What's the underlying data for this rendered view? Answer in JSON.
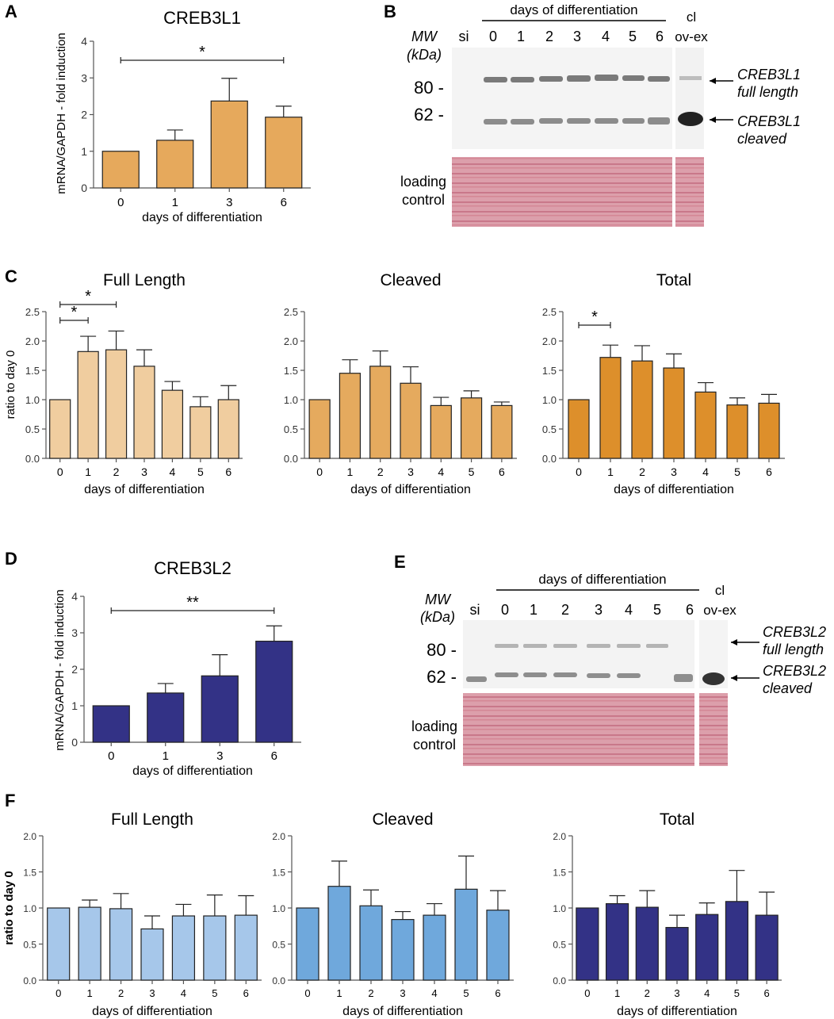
{
  "panel_labels": {
    "A": "A",
    "B": "B",
    "C": "C",
    "D": "D",
    "E": "E",
    "F": "F"
  },
  "colors": {
    "creb3l1_mrna": "#e6a95c",
    "c_full": "#f0cd9f",
    "c_cleaved": "#e5aa5e",
    "c_total": "#dd8f2b",
    "creb3l2_mrna": "#333286",
    "f_full": "#a6c7ea",
    "f_cleaved": "#6fa8dc",
    "f_total": "#333286"
  },
  "chart_data": [
    {
      "id": "A",
      "type": "bar",
      "title": "CREB3L1",
      "xlabel": "days of differentiation",
      "ylabel": "mRNA/GAPDH - fold induction",
      "categories": [
        "0",
        "1",
        "3",
        "6"
      ],
      "values": [
        1.0,
        1.3,
        2.37,
        1.93
      ],
      "errors": [
        0,
        0.28,
        0.62,
        0.3
      ],
      "ylim": [
        0,
        4
      ],
      "yticks": [
        "0",
        "1",
        "2",
        "3",
        "4"
      ],
      "significance": [
        {
          "from": "0",
          "to": "6",
          "label": "*"
        }
      ]
    },
    {
      "id": "C1",
      "type": "bar",
      "title": "Full Length",
      "xlabel": "days of differentiation",
      "ylabel": "ratio to day 0",
      "categories": [
        "0",
        "1",
        "2",
        "3",
        "4",
        "5",
        "6"
      ],
      "values": [
        1.0,
        1.82,
        1.85,
        1.57,
        1.16,
        0.88,
        1.0
      ],
      "errors": [
        0,
        0.26,
        0.32,
        0.28,
        0.15,
        0.17,
        0.24
      ],
      "ylim": [
        0,
        2.5
      ],
      "yticks": [
        "0.0",
        "0.5",
        "1.0",
        "1.5",
        "2.0",
        "2.5"
      ],
      "significance": [
        {
          "from": "0",
          "to": "1",
          "label": "*"
        },
        {
          "from": "0",
          "to": "2",
          "label": "*"
        }
      ]
    },
    {
      "id": "C2",
      "type": "bar",
      "title": "Cleaved",
      "xlabel": "days of differentiation",
      "ylabel": "",
      "categories": [
        "0",
        "1",
        "2",
        "3",
        "4",
        "5",
        "6"
      ],
      "values": [
        1.0,
        1.45,
        1.57,
        1.28,
        0.9,
        1.03,
        0.9
      ],
      "errors": [
        0,
        0.23,
        0.26,
        0.28,
        0.14,
        0.12,
        0.06
      ],
      "ylim": [
        0,
        2.5
      ],
      "yticks": [
        "0.0",
        "0.5",
        "1.0",
        "1.5",
        "2.0",
        "2.5"
      ],
      "significance": []
    },
    {
      "id": "C3",
      "type": "bar",
      "title": "Total",
      "xlabel": "days of differentiation",
      "ylabel": "",
      "categories": [
        "0",
        "1",
        "2",
        "3",
        "4",
        "5",
        "6"
      ],
      "values": [
        1.0,
        1.72,
        1.66,
        1.54,
        1.13,
        0.91,
        0.94
      ],
      "errors": [
        0,
        0.21,
        0.26,
        0.24,
        0.16,
        0.12,
        0.15
      ],
      "ylim": [
        0,
        2.5
      ],
      "yticks": [
        "0.0",
        "0.5",
        "1.0",
        "1.5",
        "2.0",
        "2.5"
      ],
      "significance": [
        {
          "from": "0",
          "to": "1",
          "label": "*"
        }
      ]
    },
    {
      "id": "D",
      "type": "bar",
      "title": "CREB3L2",
      "xlabel": "days of differentiation",
      "ylabel": "mRNA/GAPDH - fold induction",
      "categories": [
        "0",
        "1",
        "3",
        "6"
      ],
      "values": [
        1.0,
        1.35,
        1.82,
        2.77
      ],
      "errors": [
        0,
        0.26,
        0.58,
        0.42
      ],
      "ylim": [
        0,
        4
      ],
      "yticks": [
        "0",
        "1",
        "2",
        "3",
        "4"
      ],
      "significance": [
        {
          "from": "0",
          "to": "6",
          "label": "**"
        }
      ]
    },
    {
      "id": "F1",
      "type": "bar",
      "title": "Full Length",
      "xlabel": "days of differentiation",
      "ylabel": "ratio to day 0",
      "categories": [
        "0",
        "1",
        "2",
        "3",
        "4",
        "5",
        "6"
      ],
      "values": [
        1.0,
        1.01,
        0.99,
        0.71,
        0.89,
        0.89,
        0.9
      ],
      "errors": [
        0,
        0.1,
        0.21,
        0.18,
        0.16,
        0.29,
        0.27
      ],
      "ylim": [
        0,
        2.0
      ],
      "yticks": [
        "0.0",
        "0.5",
        "1.0",
        "1.5",
        "2.0"
      ],
      "significance": []
    },
    {
      "id": "F2",
      "type": "bar",
      "title": "Cleaved",
      "xlabel": "days of differentiation",
      "ylabel": "",
      "categories": [
        "0",
        "1",
        "2",
        "3",
        "4",
        "5",
        "6"
      ],
      "values": [
        1.0,
        1.3,
        1.03,
        0.84,
        0.9,
        1.26,
        0.97
      ],
      "errors": [
        0,
        0.35,
        0.22,
        0.11,
        0.16,
        0.46,
        0.27
      ],
      "ylim": [
        0,
        2.0
      ],
      "yticks": [
        "0.0",
        "0.5",
        "1.0",
        "1.5",
        "2.0"
      ],
      "significance": []
    },
    {
      "id": "F3",
      "type": "bar",
      "title": "Total",
      "xlabel": "days of differentiation",
      "ylabel": "",
      "categories": [
        "0",
        "1",
        "2",
        "3",
        "4",
        "5",
        "6"
      ],
      "values": [
        1.0,
        1.06,
        1.01,
        0.73,
        0.91,
        1.09,
        0.9
      ],
      "errors": [
        0,
        0.11,
        0.23,
        0.17,
        0.16,
        0.43,
        0.32
      ],
      "ylim": [
        0,
        2.0
      ],
      "yticks": [
        "0.0",
        "0.5",
        "1.0",
        "1.5",
        "2.0"
      ],
      "significance": []
    }
  ],
  "blot_B": {
    "header": "days of differentiation",
    "mw_label": "MW",
    "kda_label": "(kDa)",
    "lanes": [
      "si",
      "0",
      "1",
      "2",
      "3",
      "4",
      "5",
      "6"
    ],
    "cl_label": "cl",
    "ovex_label": "ov-ex",
    "markers": [
      "80 -",
      "62 -"
    ],
    "arrow_full_1": "CREB3L1",
    "arrow_full_2": "full length",
    "arrow_cleaved_1": "CREB3L1",
    "arrow_cleaved_2": "cleaved",
    "loading_1": "loading",
    "loading_2": "control"
  },
  "blot_E": {
    "header": "days of differentiation",
    "mw_label": "MW",
    "kda_label": "(kDa)",
    "lanes": [
      "si",
      "0",
      "1",
      "2",
      "3",
      "4",
      "5",
      "6"
    ],
    "cl_label": "cl",
    "ovex_label": "ov-ex",
    "markers": [
      "80 -",
      "62 -"
    ],
    "arrow_full_1": "CREB3L2",
    "arrow_full_2": "full length",
    "arrow_cleaved_1": "CREB3L2",
    "arrow_cleaved_2": "cleaved",
    "loading_1": "loading",
    "loading_2": "control"
  }
}
